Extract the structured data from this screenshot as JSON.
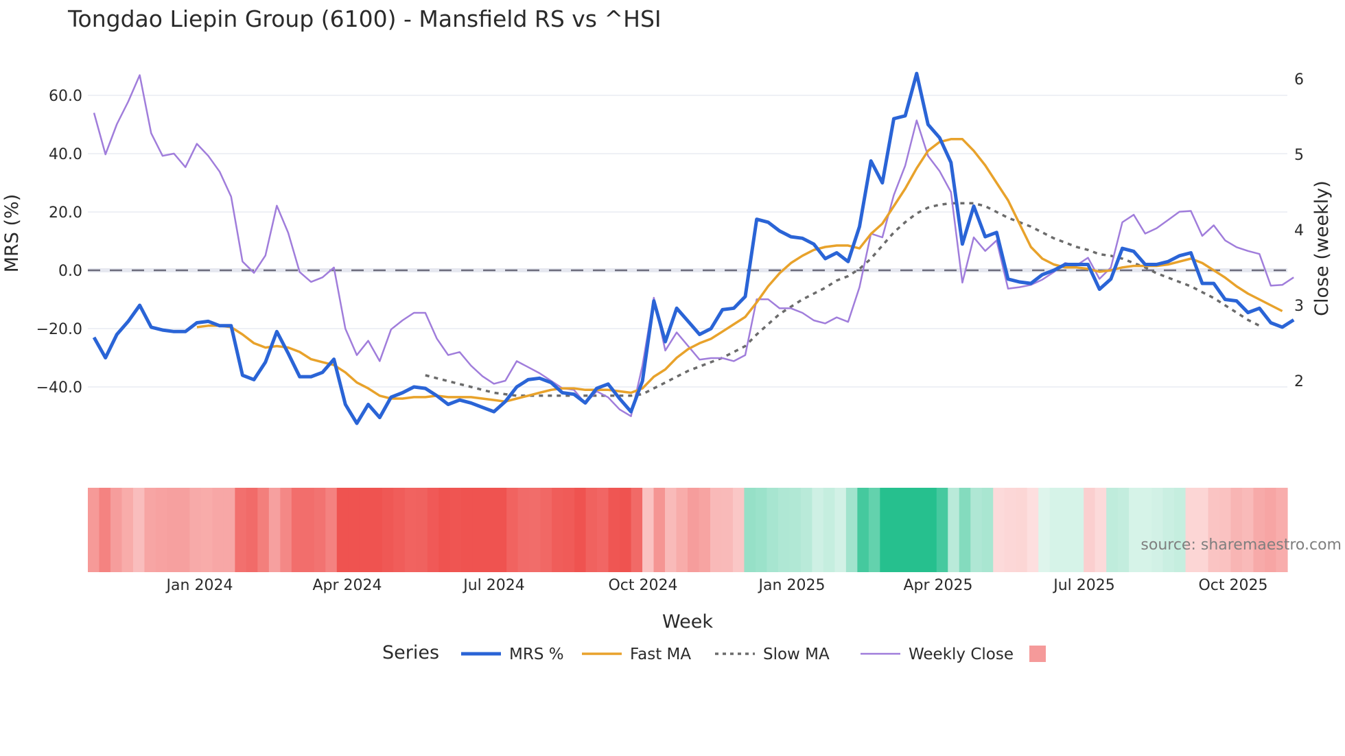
{
  "title": "Tongdao Liepin Group (6100) - Mansfield RS vs ^HSI",
  "source": "source: sharemaestro.com",
  "axes": {
    "y_left_title": "MRS (%)",
    "y_right_title": "Close (weekly)",
    "x_title": "Week",
    "y_left_ticks": [
      "60.0",
      "40.0",
      "20.0",
      "0.0",
      "−20.0",
      "−40.0"
    ],
    "y_right_ticks": [
      "6",
      "5",
      "4",
      "3",
      "2"
    ],
    "x_ticks": [
      "Jan 2024",
      "Apr 2024",
      "Jul 2024",
      "Oct 2024",
      "Jan 2025",
      "Apr 2025",
      "Jul 2025",
      "Oct 2025"
    ]
  },
  "legend": {
    "title": "Series",
    "items": [
      {
        "label": "MRS %",
        "color": "#2a64d6",
        "style": "solid-thick"
      },
      {
        "label": "Fast MA",
        "color": "#e8a22b",
        "style": "solid"
      },
      {
        "label": "Slow MA",
        "color": "#6b6b6b",
        "style": "dotted"
      },
      {
        "label": "Weekly Close",
        "color": "#a07ddb",
        "style": "solid-thin"
      },
      {
        "label": "",
        "color": "#f59a9a",
        "style": "swatch"
      }
    ]
  },
  "colors": {
    "mrs": "#2a64d6",
    "fast_ma": "#e8a22b",
    "slow_ma": "#6b6b6b",
    "close": "#a07ddb",
    "zero_line": "#6b6b7b",
    "grid": "#eef0f5",
    "heat_negative": "#ef5350",
    "heat_positive": "#26c08e"
  },
  "chart_data": {
    "type": "line",
    "title": "Tongdao Liepin Group (6100) - Mansfield RS vs ^HSI",
    "xlabel": "Week",
    "ylabel": "MRS (%)",
    "y2label": "Close (weekly)",
    "ylim": [
      -57,
      72
    ],
    "y2lim": [
      1.4,
      6.3
    ],
    "x_range": [
      "2023-10-20",
      "2025-10-31"
    ],
    "legend_position": "bottom",
    "grid": true,
    "series": [
      {
        "name": "MRS %",
        "axis": "left",
        "values": [
          -23,
          -30,
          -22,
          -17.5,
          -12,
          -19.5,
          -20.5,
          -21,
          -21,
          -18,
          -17.5,
          -19,
          -19,
          -36,
          -37.5,
          -31.5,
          -21,
          -28.5,
          -36.5,
          -36.5,
          -35,
          -30.5,
          -46,
          -52.5,
          -46,
          -50.5,
          -43.5,
          -42,
          -40,
          -40.5,
          -43,
          -46,
          -44.5,
          -45.5,
          -47,
          -48.5,
          -45,
          -40,
          -37.5,
          -37,
          -38.5,
          -42,
          -42.5,
          -45.5,
          -40.5,
          -39,
          -44,
          -48.5,
          -38,
          -10.5,
          -24.5,
          -13,
          -17.5,
          -22,
          -20,
          -13.5,
          -13,
          -9,
          17.5,
          16.5,
          13.5,
          11.5,
          11,
          9,
          4,
          6,
          3,
          15,
          37.5,
          30,
          52,
          53,
          67.5,
          50,
          45.5,
          37,
          9,
          22,
          11.5,
          13,
          -3,
          -4,
          -4.5,
          -1.5,
          0,
          2,
          2,
          2,
          -6.5,
          -3,
          7.5,
          6.5,
          2,
          2,
          3,
          5,
          6,
          -4.5,
          -4.5,
          -10,
          -10.5,
          -14.5,
          -13,
          -18,
          -19.5,
          -17
        ]
      },
      {
        "name": "Fast MA",
        "axis": "left",
        "values": [
          null,
          null,
          null,
          null,
          null,
          null,
          null,
          null,
          null,
          -19.5,
          -19,
          -19,
          -19.5,
          -22,
          -25,
          -26.5,
          -26,
          -26.5,
          -28,
          -30.5,
          -31.5,
          -32.5,
          -35,
          -38.5,
          -40.5,
          -43,
          -44,
          -44,
          -43.5,
          -43.5,
          -43,
          -43.5,
          -43.5,
          -43.5,
          -44,
          -44.5,
          -45,
          -44,
          -43,
          -42,
          -41,
          -40.5,
          -40.5,
          -41,
          -41,
          -41,
          -41.5,
          -42,
          -40.5,
          -36.5,
          -34,
          -30,
          -27,
          -25,
          -23.5,
          -21,
          -18.5,
          -16,
          -11,
          -5.5,
          -1,
          2.5,
          5,
          7,
          8,
          8.5,
          8.5,
          7.5,
          12.5,
          16,
          22,
          28,
          35,
          41,
          44,
          45,
          45,
          41,
          36,
          30,
          24,
          16,
          8,
          4,
          2,
          1,
          1,
          0.5,
          -0.5,
          0,
          1,
          1.5,
          1.5,
          1.5,
          2,
          3,
          4,
          2.5,
          0,
          -2.5,
          -5.5,
          -8,
          -10,
          -12,
          -14
        ]
      },
      {
        "name": "Slow MA",
        "axis": "left",
        "style": "dotted",
        "values": [
          null,
          null,
          null,
          null,
          null,
          null,
          null,
          null,
          null,
          null,
          null,
          null,
          null,
          null,
          null,
          null,
          null,
          null,
          null,
          null,
          null,
          null,
          null,
          null,
          null,
          null,
          null,
          null,
          null,
          -36,
          -37,
          -38,
          -39,
          -40,
          -41,
          -42,
          -42.5,
          -43,
          -43,
          -43,
          -43,
          -43,
          -43,
          -43,
          -43,
          -43,
          -43,
          -43,
          -42.5,
          -40.5,
          -38.5,
          -36.5,
          -34.5,
          -33,
          -31.5,
          -30,
          -28,
          -26,
          -22,
          -18.5,
          -15,
          -12.5,
          -10,
          -8,
          -6,
          -3.5,
          -2,
          0.5,
          4,
          8.5,
          13,
          16.5,
          19.5,
          21.5,
          22.5,
          23,
          23,
          23,
          22,
          20,
          18,
          16.5,
          15,
          13,
          11,
          9.5,
          8,
          7,
          5.5,
          5,
          4,
          2.5,
          1,
          -1,
          -2.5,
          -4,
          -5.5,
          -7.5,
          -9.5,
          -12,
          -14.5,
          -17,
          -19
        ]
      },
      {
        "name": "Weekly Close",
        "axis": "right",
        "values": [
          5.55,
          5.0,
          5.4,
          5.7,
          6.05,
          5.28,
          4.98,
          5.01,
          4.83,
          5.14,
          4.98,
          4.77,
          4.44,
          3.58,
          3.43,
          3.66,
          4.32,
          3.96,
          3.44,
          3.31,
          3.37,
          3.5,
          2.69,
          2.34,
          2.53,
          2.26,
          2.68,
          2.8,
          2.9,
          2.9,
          2.56,
          2.34,
          2.38,
          2.2,
          2.06,
          1.96,
          2.0,
          2.26,
          2.18,
          2.1,
          2.0,
          1.9,
          1.88,
          1.7,
          1.86,
          1.78,
          1.62,
          1.53,
          2.2,
          3.1,
          2.4,
          2.64,
          2.46,
          2.28,
          2.3,
          2.3,
          2.26,
          2.34,
          3.08,
          3.08,
          2.96,
          2.96,
          2.9,
          2.8,
          2.76,
          2.84,
          2.78,
          3.24,
          3.95,
          3.9,
          4.46,
          4.85,
          5.45,
          4.98,
          4.78,
          4.5,
          3.3,
          3.9,
          3.72,
          3.86,
          3.22,
          3.24,
          3.27,
          3.34,
          3.44,
          3.56,
          3.53,
          3.63,
          3.35,
          3.5,
          4.1,
          4.2,
          3.95,
          4.02,
          4.13,
          4.24,
          4.25,
          3.92,
          4.06,
          3.86,
          3.77,
          3.72,
          3.68,
          3.26,
          3.27,
          3.37
        ]
      },
      {
        "name": "MRS heat band",
        "type": "heatmap",
        "note": "per-week color strip: red shades for negative MRS, green shades for positive MRS"
      }
    ]
  }
}
